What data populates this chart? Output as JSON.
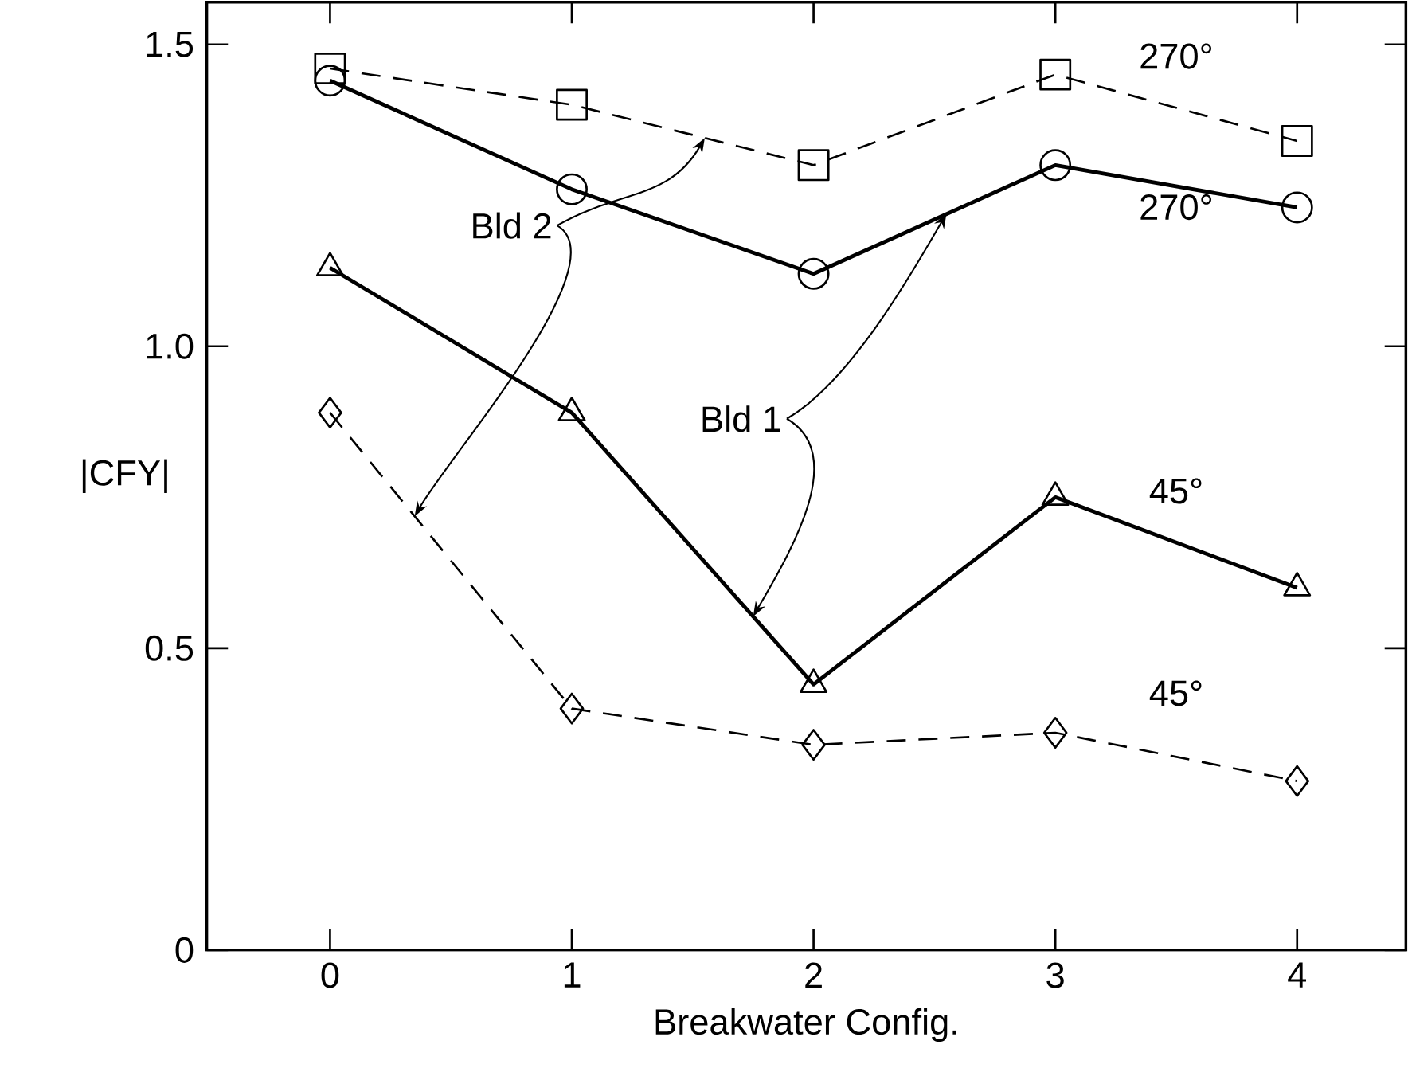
{
  "chart_data": {
    "type": "line",
    "xlabel": "Breakwater Config.",
    "ylabel": "|CFY|",
    "x": [
      0,
      1,
      2,
      3,
      4
    ],
    "xlim": [
      -0.51,
      4.45
    ],
    "ylim": [
      0,
      1.57
    ],
    "xticks": [
      0,
      1,
      2,
      3,
      4
    ],
    "yticks": [
      0,
      0.5,
      {
        "value": 1,
        "label": "1.0"
      },
      1.5
    ],
    "series": [
      {
        "name": "270°",
        "color": "#000000",
        "marker": "square",
        "line_style": "dashed",
        "values": [
          1.46,
          1.4,
          1.3,
          1.45,
          1.34
        ]
      },
      {
        "name": "270°",
        "color": "#000000",
        "marker": "circle",
        "line_style": "solid",
        "values": [
          1.44,
          1.26,
          1.12,
          1.3,
          1.23
        ]
      },
      {
        "name": "45°",
        "color": "#000000",
        "marker": "triangle",
        "line_style": "solid",
        "values": [
          1.13,
          0.89,
          0.44,
          0.75,
          0.6
        ]
      },
      {
        "name": "45°",
        "color": "#000000",
        "marker": "diamond",
        "line_style": "dashed",
        "values": [
          0.89,
          0.4,
          0.34,
          0.36,
          0.28
        ]
      }
    ],
    "annotations": [
      {
        "text": "Bld 2",
        "x": 1.55,
        "y": 1.345
      },
      {
        "text": "Bld 1",
        "x": 2.55,
        "y": 1.22
      }
    ]
  }
}
